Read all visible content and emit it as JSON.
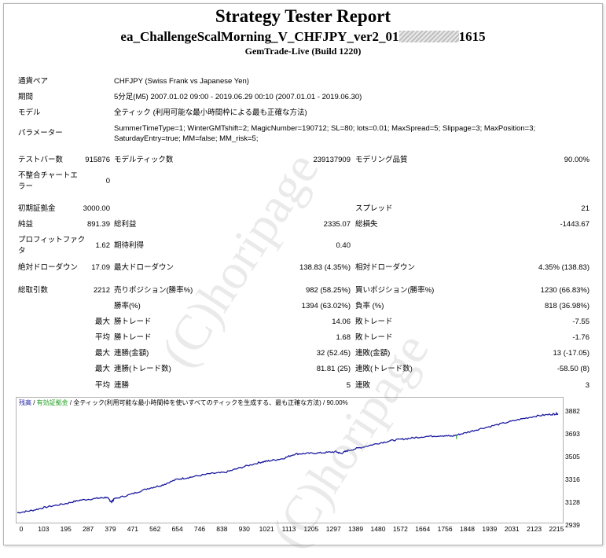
{
  "report": {
    "title": "Strategy Tester Report",
    "ea_prefix": "ea_ChallengeScalMorning_V_CHFJPY_ver2_01",
    "ea_suffix": "1615",
    "build": "GemTrade-Live (Build 1220)"
  },
  "info": {
    "symbol_label": "通貨ペア",
    "symbol": "CHFJPY (Swiss Frank vs Japanese Yen)",
    "period_label": "期間",
    "period": "5分足(M5) 2007.01.02 09:00 - 2019.06.29 00:10 (2007.01.01 - 2019.06.30)",
    "model_label": "モデル",
    "model": "全ティック (利用可能な最小時間枠による最も正確な方法)",
    "params_label": "パラメーター",
    "params_line1": "SummerTimeType=1; WinterGMTshift=2; MagicNumber=190712; SL=80; lots=0.01; MaxSpread=5; Slippage=3; MaxPosition=3;",
    "params_line2": "SaturdayEntry=true; MM=false; MM_risk=5;"
  },
  "stats": {
    "bars_label": "テストバー数",
    "bars": "915876",
    "ticks_label": "モデルティック数",
    "ticks": "239137909",
    "quality_label": "モデリング品質",
    "quality": "90.00%",
    "mismatch_label_1": "不整合チャートエ",
    "mismatch_label_2": "ラー",
    "mismatch": "0",
    "deposit_label": "初期証拠金",
    "deposit": "3000.00",
    "spread_label": "スプレッド",
    "spread": "21",
    "net_label": "純益",
    "net": "891.39",
    "gross_profit_label": "総利益",
    "gross_profit": "2335.07",
    "gross_loss_label": "総損失",
    "gross_loss": "-1443.67",
    "pf_label_1": "プロフィットファク",
    "pf_label_2": "タ",
    "pf": "1.62",
    "expected_label": "期待利得",
    "expected": "0.40",
    "abs_dd_label": "絶対ドローダウン",
    "abs_dd": "17.09",
    "max_dd_label": "最大ドローダウン",
    "max_dd": "138.83 (4.35%)",
    "rel_dd_label": "相対ドローダウン",
    "rel_dd": "4.35% (138.83)",
    "total_label": "総取引数",
    "total": "2212",
    "short_label": "売りポジション(勝率%)",
    "short": "982 (58.25%)",
    "long_label": "買いポジション(勝率%)",
    "long": "1230 (66.83%)",
    "win_label": "勝率(%)",
    "win": "1394 (63.02%)",
    "loss_label": "負率 (%)",
    "loss": "818 (36.98%)",
    "max_word": "最大",
    "avg_word": "平均",
    "largest_win_label": "勝トレード",
    "largest_win": "14.06",
    "largest_loss_label": "敗トレード",
    "largest_loss": "-7.55",
    "avg_win_label": "勝トレード",
    "avg_win": "1.68",
    "avg_loss_label": "敗トレード",
    "avg_loss": "-1.76",
    "cons_wins_money_label": "連勝(金額)",
    "cons_wins_money": "32 (52.45)",
    "cons_loss_money_label": "連敗(金額)",
    "cons_loss_money": "13 (-17.05)",
    "cons_profit_label": "連勝(トレード数)",
    "cons_profit": "81.81 (25)",
    "cons_loss_trades_label": "連敗(トレード数)",
    "cons_loss_trades": "-58.50 (8)",
    "avg_cons_win_label": "連勝",
    "avg_cons_win": "5",
    "avg_cons_loss_label": "連敗",
    "avg_cons_loss": "3"
  },
  "watermark": "(C)horipage",
  "chart_data": {
    "type": "line",
    "legend_balance": "残高",
    "legend_sep1": " / ",
    "legend_equity": "有効証拠金",
    "legend_sep2": " / ",
    "legend_model": "全ティック(利用可能な最小時間枠を使いすべてのティックを生成する、最も正確な方法)",
    "legend_sep3": " / ",
    "legend_quality": "90.00%",
    "ylim": [
      2939,
      3900
    ],
    "xlim": [
      0,
      2250
    ],
    "y_ticks": [
      "3882",
      "3693",
      "3505",
      "3316",
      "3128",
      "2939"
    ],
    "x_ticks": [
      "0",
      "103",
      "195",
      "287",
      "379",
      "471",
      "562",
      "654",
      "746",
      "838",
      "930",
      "1021",
      "1113",
      "1205",
      "1297",
      "1389",
      "1480",
      "1572",
      "1664",
      "1756",
      "1848",
      "1939",
      "2031",
      "2123",
      "2215"
    ],
    "balance": [
      [
        0,
        2990
      ],
      [
        60,
        3010
      ],
      [
        120,
        3040
      ],
      [
        200,
        3070
      ],
      [
        260,
        3100
      ],
      [
        330,
        3115
      ],
      [
        370,
        3125
      ],
      [
        390,
        3085
      ],
      [
        400,
        3110
      ],
      [
        470,
        3150
      ],
      [
        540,
        3200
      ],
      [
        600,
        3230
      ],
      [
        660,
        3280
      ],
      [
        720,
        3300
      ],
      [
        800,
        3330
      ],
      [
        860,
        3340
      ],
      [
        930,
        3385
      ],
      [
        1000,
        3425
      ],
      [
        1040,
        3440
      ],
      [
        1100,
        3460
      ],
      [
        1150,
        3500
      ],
      [
        1200,
        3505
      ],
      [
        1260,
        3510
      ],
      [
        1320,
        3520
      ],
      [
        1340,
        3505
      ],
      [
        1370,
        3530
      ],
      [
        1430,
        3560
      ],
      [
        1500,
        3595
      ],
      [
        1560,
        3620
      ],
      [
        1620,
        3635
      ],
      [
        1680,
        3650
      ],
      [
        1760,
        3660
      ],
      [
        1800,
        3655
      ],
      [
        1850,
        3680
      ],
      [
        1920,
        3720
      ],
      [
        2000,
        3760
      ],
      [
        2080,
        3800
      ],
      [
        2150,
        3830
      ],
      [
        2215,
        3845
      ],
      [
        2240,
        3850
      ]
    ],
    "equity_marks": [
      [
        1820,
        3630
      ]
    ],
    "series": [
      {
        "name": "残高",
        "values": []
      }
    ]
  }
}
